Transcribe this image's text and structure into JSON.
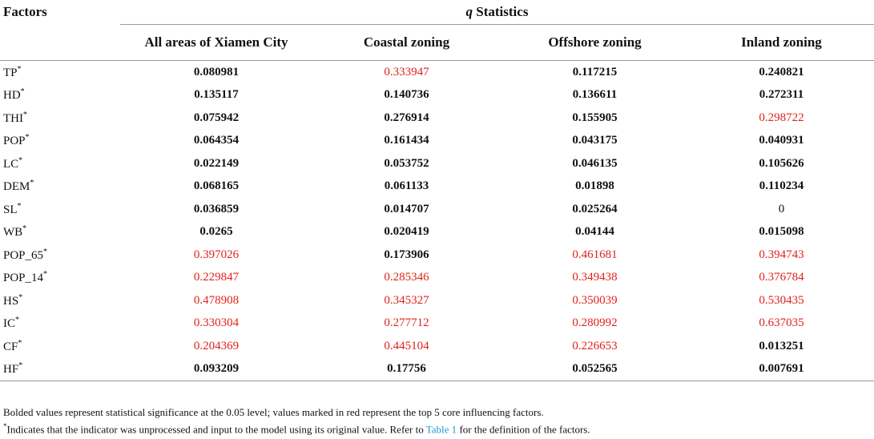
{
  "header": {
    "factors_label": "Factors",
    "q_label": "q",
    "stat_label": "Statistics",
    "columns": [
      "All areas of Xiamen City",
      "Coastal zoning",
      "Offshore zoning",
      "Inland zoning"
    ]
  },
  "colors": {
    "highlight": "#e0211b",
    "link": "#1b9ad6",
    "rule": "#9a9a9a"
  },
  "rows": [
    {
      "factor": "TP",
      "star": "*",
      "values": [
        "0.080981",
        "0.333947",
        "0.117215",
        "0.240821"
      ],
      "styles": [
        "b",
        "r",
        "b",
        "b"
      ]
    },
    {
      "factor": "HD",
      "star": "*",
      "values": [
        "0.135117",
        "0.140736",
        "0.136611",
        "0.272311"
      ],
      "styles": [
        "b",
        "b",
        "b",
        "b"
      ]
    },
    {
      "factor": "THI",
      "star": "*",
      "values": [
        "0.075942",
        "0.276914",
        "0.155905",
        "0.298722"
      ],
      "styles": [
        "b",
        "b",
        "b",
        "r"
      ]
    },
    {
      "factor": "POP",
      "star": "*",
      "values": [
        "0.064354",
        "0.161434",
        "0.043175",
        "0.040931"
      ],
      "styles": [
        "b",
        "b",
        "b",
        "b"
      ]
    },
    {
      "factor": "LC",
      "star": "*",
      "values": [
        "0.022149",
        "0.053752",
        "0.046135",
        "0.105626"
      ],
      "styles": [
        "b",
        "b",
        "b",
        "b"
      ]
    },
    {
      "factor": "DEM",
      "star": "*",
      "values": [
        "0.068165",
        "0.061133",
        "0.01898",
        "0.110234"
      ],
      "styles": [
        "b",
        "b",
        "b",
        "b"
      ]
    },
    {
      "factor": "SL",
      "star": "*",
      "values": [
        "0.036859",
        "0.014707",
        "0.025264",
        "0"
      ],
      "styles": [
        "b",
        "b",
        "b",
        "n"
      ]
    },
    {
      "factor": "WB",
      "star": "*",
      "values": [
        "0.0265",
        "0.020419",
        "0.04144",
        "0.015098"
      ],
      "styles": [
        "b",
        "b",
        "b",
        "b"
      ]
    },
    {
      "factor": "POP_65",
      "star": "*",
      "values": [
        "0.397026",
        "0.173906",
        "0.461681",
        "0.394743"
      ],
      "styles": [
        "r",
        "b",
        "r",
        "r"
      ]
    },
    {
      "factor": "POP_14",
      "star": "*",
      "values": [
        "0.229847",
        "0.285346",
        "0.349438",
        "0.376784"
      ],
      "styles": [
        "r",
        "r",
        "r",
        "r"
      ]
    },
    {
      "factor": "HS",
      "star": "*",
      "values": [
        "0.478908",
        "0.345327",
        "0.350039",
        "0.530435"
      ],
      "styles": [
        "r",
        "r",
        "r",
        "r"
      ]
    },
    {
      "factor": "IC",
      "star": "*",
      "values": [
        "0.330304",
        "0.277712",
        "0.280992",
        "0.637035"
      ],
      "styles": [
        "r",
        "r",
        "r",
        "r"
      ]
    },
    {
      "factor": "CF",
      "star": "*",
      "values": [
        "0.204369",
        "0.445104",
        "0.226653",
        "0.013251"
      ],
      "styles": [
        "r",
        "r",
        "r",
        "b"
      ]
    },
    {
      "factor": "HF",
      "star": "*",
      "values": [
        "0.093209",
        "0.17756",
        "0.052565",
        "0.007691"
      ],
      "styles": [
        "b",
        "b",
        "b",
        "b"
      ]
    }
  ],
  "footnotes": {
    "line1": "Bolded values represent statistical significance at the 0.05 level; values marked in red represent the top 5 core influencing factors.",
    "star": "*",
    "line2_prefix": "Indicates that the indicator was unprocessed and input to the model using its original value. Refer to ",
    "line2_link": "Table 1",
    "line2_suffix": " for the definition of the factors."
  }
}
